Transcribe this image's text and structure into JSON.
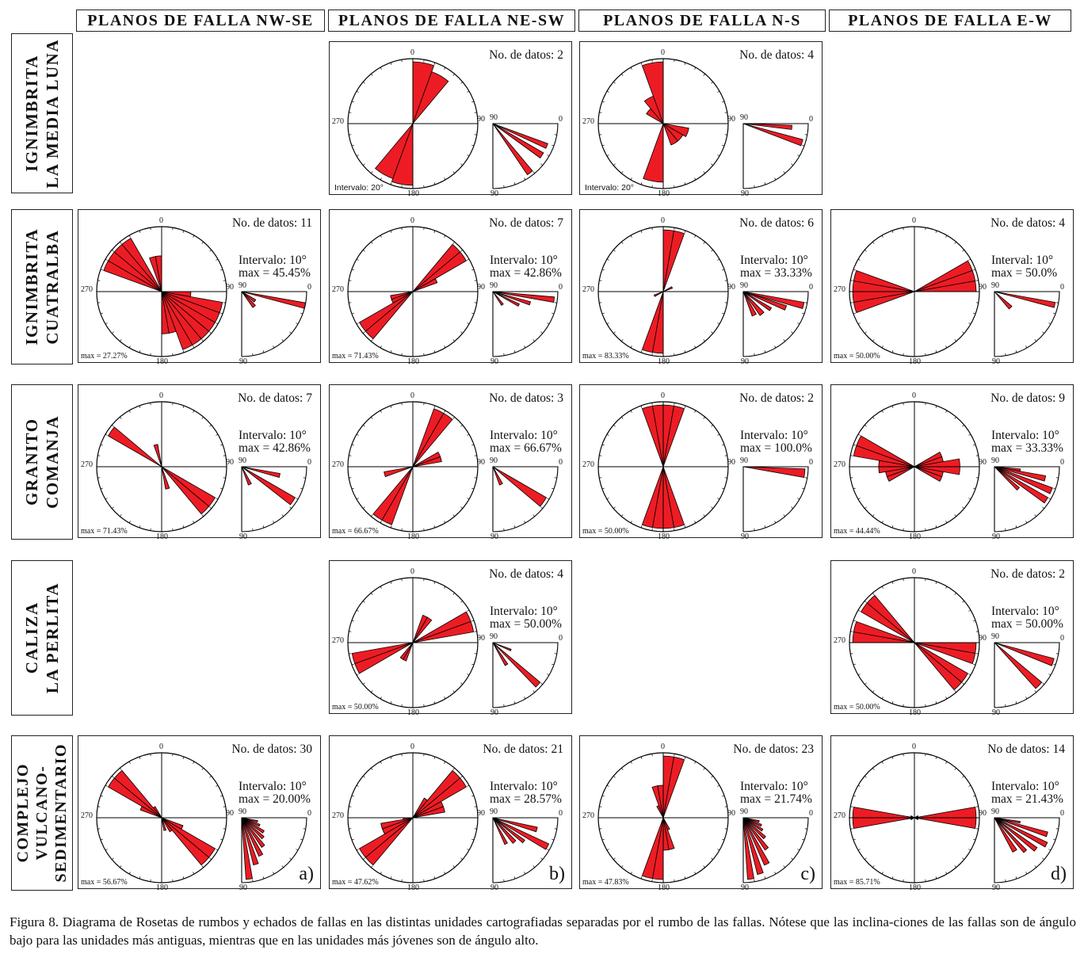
{
  "columns": [
    "PLANOS DE FALLA NW-SE",
    "PLANOS DE FALLA NE-SW",
    "PLANOS DE FALLA N-S",
    "PLANOS DE FALLA E-W"
  ],
  "rows": [
    "IGNIMBRITA\nLA MEDIA LUNA",
    "IGNIMBRITA\nCUATRALBA",
    "GRANITO\nCOMANJA",
    "CALIZA\nLA PERLITA",
    "COMPLEJO\nVULCANO-\nSEDIMENTARIO"
  ],
  "axis_labels": {
    "n": "0",
    "e": "90",
    "s": "180",
    "w": "270",
    "q_top": "0",
    "q_left": "90",
    "q_bottom": "90"
  },
  "panels": [
    {
      "row": 0,
      "col": 1,
      "ndatos": "No. de datos: 2",
      "intervalo": "",
      "max": "",
      "max_left": "",
      "intervalo_left": "Intervalo: 20°",
      "tag": "",
      "petals": [
        [
          0,
          20,
          0.95
        ],
        [
          20,
          40,
          0.85
        ],
        [
          180,
          200,
          0.95
        ],
        [
          200,
          220,
          0.9
        ]
      ],
      "dips": [
        [
          20,
          25,
          0.9
        ],
        [
          30,
          36,
          0.9
        ],
        [
          50,
          56,
          0.95
        ]
      ]
    },
    {
      "row": 0,
      "col": 2,
      "ndatos": "No. de datos: 4",
      "intervalo": "",
      "max": "",
      "max_left": "",
      "intervalo_left": "Intervalo: 20°",
      "tag": "",
      "petals": [
        [
          340,
          360,
          0.95
        ],
        [
          300,
          320,
          0.3
        ],
        [
          320,
          340,
          0.45
        ],
        [
          180,
          200,
          0.9
        ],
        [
          100,
          120,
          0.4
        ],
        [
          120,
          140,
          0.35
        ],
        [
          140,
          160,
          0.35
        ]
      ],
      "dips": [
        [
          2,
          7,
          0.75
        ],
        [
          15,
          21,
          0.95
        ]
      ]
    },
    {
      "row": 1,
      "col": 0,
      "ndatos": "No. de datos: 11",
      "intervalo": "Intervalo: 10°",
      "max": "max = 45.45%",
      "max_left": "max = 27.27%",
      "intervalo_left": "",
      "tag": "",
      "petals": [
        [
          290,
          300,
          0.95
        ],
        [
          300,
          310,
          0.95
        ],
        [
          310,
          320,
          0.95
        ],
        [
          320,
          330,
          0.95
        ],
        [
          340,
          350,
          0.55
        ],
        [
          350,
          360,
          0.55
        ],
        [
          160,
          170,
          0.65
        ],
        [
          170,
          180,
          0.65
        ],
        [
          150,
          160,
          0.95
        ],
        [
          140,
          150,
          0.95
        ],
        [
          130,
          140,
          0.95
        ],
        [
          120,
          130,
          0.95
        ],
        [
          110,
          120,
          0.95
        ],
        [
          100,
          110,
          0.95
        ],
        [
          90,
          100,
          0.45
        ]
      ],
      "dips": [
        [
          30,
          40,
          0.25
        ],
        [
          45,
          55,
          0.3
        ],
        [
          10,
          15,
          1.0
        ]
      ]
    },
    {
      "row": 1,
      "col": 1,
      "ndatos": "No. de datos: 7",
      "intervalo": "Intervalo: 10°",
      "max": "max = 42.86%",
      "max_left": "max = 71.43%",
      "intervalo_left": "",
      "tag": "",
      "petals": [
        [
          40,
          50,
          0.95
        ],
        [
          50,
          60,
          0.95
        ],
        [
          60,
          70,
          0.4
        ],
        [
          230,
          240,
          0.95
        ],
        [
          220,
          230,
          0.95
        ],
        [
          240,
          250,
          0.35
        ],
        [
          250,
          260,
          0.35
        ]
      ],
      "dips": [
        [
          50,
          58,
          0.25
        ],
        [
          25,
          30,
          0.45
        ],
        [
          5,
          10,
          0.95
        ],
        [
          15,
          20,
          0.6
        ]
      ]
    },
    {
      "row": 1,
      "col": 2,
      "ndatos": "No. de datos: 6",
      "intervalo": "Intervalo: 10°",
      "max": "max = 33.33%",
      "max_left": "max = 83.33%",
      "intervalo_left": "",
      "tag": "",
      "petals": [
        [
          0,
          10,
          0.95
        ],
        [
          10,
          20,
          0.95
        ],
        [
          190,
          200,
          0.95
        ],
        [
          180,
          190,
          0.95
        ],
        [
          60,
          70,
          0.15
        ],
        [
          240,
          250,
          0.15
        ]
      ],
      "dips": [
        [
          60,
          70,
          0.4
        ],
        [
          45,
          55,
          0.45
        ],
        [
          30,
          36,
          0.5
        ],
        [
          18,
          24,
          0.7
        ],
        [
          10,
          16,
          0.95
        ]
      ]
    },
    {
      "row": 1,
      "col": 3,
      "ndatos": "No. de datos: 4",
      "intervalo": "Interval: 10°",
      "max": "max = 50.0%",
      "max_left": "max = 50.00%",
      "intervalo_left": "",
      "tag": "",
      "petals": [
        [
          60,
          70,
          0.95
        ],
        [
          70,
          80,
          0.95
        ],
        [
          80,
          90,
          0.95
        ],
        [
          250,
          260,
          0.95
        ],
        [
          260,
          270,
          0.95
        ],
        [
          270,
          280,
          0.95
        ],
        [
          280,
          290,
          0.95
        ]
      ],
      "dips": [
        [
          40,
          50,
          0.35
        ],
        [
          10,
          15,
          0.95
        ]
      ]
    },
    {
      "row": 2,
      "col": 0,
      "ndatos": "No.  de datos: 7",
      "intervalo": "Intervalo: 10°",
      "max": "max = 42.86%",
      "max_left": "max = 71.43%",
      "intervalo_left": "",
      "tag": "",
      "petals": [
        [
          300,
          310,
          0.95
        ],
        [
          340,
          350,
          0.35
        ],
        [
          130,
          140,
          0.95
        ],
        [
          120,
          130,
          0.95
        ],
        [
          160,
          170,
          0.35
        ]
      ],
      "dips": [
        [
          60,
          70,
          0.3
        ],
        [
          30,
          38,
          0.95
        ],
        [
          10,
          16,
          0.6
        ]
      ]
    },
    {
      "row": 2,
      "col": 1,
      "ndatos": "No. de datos: 3",
      "intervalo": "Intervalo: 10°",
      "max": "max = 66.67%",
      "max_left": "max = 66.67%",
      "intervalo_left": "",
      "tag": "",
      "petals": [
        [
          20,
          30,
          0.95
        ],
        [
          30,
          40,
          0.95
        ],
        [
          60,
          70,
          0.45
        ],
        [
          70,
          80,
          0.45
        ],
        [
          210,
          220,
          0.95
        ],
        [
          200,
          210,
          0.95
        ],
        [
          250,
          260,
          0.45
        ]
      ],
      "dips": [
        [
          30,
          40,
          0.95
        ],
        [
          60,
          70,
          0.3
        ]
      ]
    },
    {
      "row": 2,
      "col": 2,
      "ndatos": "No. de datos: 2",
      "intervalo": "Intervalo: 10°",
      "max": "max = 100.0%",
      "max_left": "max = 50.00%",
      "intervalo_left": "",
      "tag": "",
      "petals": [
        [
          340,
          350,
          0.95
        ],
        [
          350,
          360,
          0.95
        ],
        [
          0,
          10,
          0.95
        ],
        [
          10,
          20,
          0.95
        ],
        [
          160,
          170,
          0.95
        ],
        [
          170,
          180,
          0.95
        ],
        [
          180,
          190,
          0.95
        ],
        [
          190,
          200,
          0.95
        ]
      ],
      "dips": [
        [
          2,
          10,
          0.95
        ]
      ]
    },
    {
      "row": 2,
      "col": 3,
      "ndatos": "No. de datos: 9",
      "intervalo": "Intervalo: 10°",
      "max": "max = 33.33%",
      "max_left": "max = 44.44%",
      "intervalo_left": "",
      "tag": "",
      "petals": [
        [
          290,
          300,
          0.95
        ],
        [
          280,
          290,
          0.95
        ],
        [
          270,
          280,
          0.55
        ],
        [
          260,
          270,
          0.55
        ],
        [
          250,
          260,
          0.45
        ],
        [
          240,
          250,
          0.45
        ],
        [
          60,
          70,
          0.45
        ],
        [
          70,
          80,
          0.45
        ],
        [
          80,
          90,
          0.7
        ],
        [
          90,
          100,
          0.7
        ],
        [
          100,
          110,
          0.45
        ],
        [
          110,
          120,
          0.45
        ]
      ],
      "dips": [
        [
          40,
          46,
          0.5
        ],
        [
          30,
          36,
          0.95
        ],
        [
          20,
          26,
          0.95
        ],
        [
          10,
          16,
          0.8
        ],
        [
          5,
          10,
          0.4
        ]
      ]
    },
    {
      "row": 3,
      "col": 1,
      "ndatos": "No. de datos: 4",
      "intervalo": "Intervalo: 10°",
      "max": "max = 50.00%",
      "max_left": "max = 50.00%",
      "intervalo_left": "",
      "tag": "",
      "petals": [
        [
          60,
          70,
          0.95
        ],
        [
          70,
          80,
          0.95
        ],
        [
          20,
          30,
          0.45
        ],
        [
          30,
          40,
          0.45
        ],
        [
          250,
          260,
          0.95
        ],
        [
          240,
          250,
          0.95
        ],
        [
          200,
          210,
          0.3
        ],
        [
          210,
          220,
          0.3
        ]
      ],
      "dips": [
        [
          40,
          46,
          0.95
        ],
        [
          55,
          62,
          0.4
        ],
        [
          20,
          25,
          0.3
        ]
      ]
    },
    {
      "row": 3,
      "col": 3,
      "ndatos": "No. de datos: 2",
      "intervalo": "Intervalo: 10°",
      "max": "max = 50.00%",
      "max_left": "max = 50.00%",
      "intervalo_left": "",
      "tag": "",
      "petals": [
        [
          300,
          310,
          0.95
        ],
        [
          310,
          320,
          0.95
        ],
        [
          270,
          280,
          0.95
        ],
        [
          280,
          290,
          0.95
        ],
        [
          120,
          130,
          0.95
        ],
        [
          130,
          140,
          0.95
        ],
        [
          90,
          100,
          0.95
        ],
        [
          100,
          110,
          0.95
        ]
      ],
      "dips": [
        [
          40,
          48,
          0.95
        ],
        [
          15,
          22,
          0.95
        ]
      ]
    },
    {
      "row": 4,
      "col": 0,
      "ndatos": "No. de datos: 30",
      "intervalo": "Intervalo: 10°",
      "max": "max = 20.00%",
      "max_left": "max = 56.67%",
      "intervalo_left": "",
      "tag": "a)",
      "petals": [
        [
          300,
          310,
          0.95
        ],
        [
          310,
          320,
          0.95
        ],
        [
          290,
          300,
          0.35
        ],
        [
          320,
          330,
          0.2
        ],
        [
          120,
          130,
          0.95
        ],
        [
          130,
          140,
          0.95
        ],
        [
          110,
          120,
          0.35
        ],
        [
          140,
          150,
          0.25
        ],
        [
          160,
          170,
          0.2
        ]
      ],
      "dips": [
        [
          80,
          86,
          0.95
        ],
        [
          70,
          76,
          0.75
        ],
        [
          60,
          66,
          0.65
        ],
        [
          50,
          56,
          0.55
        ],
        [
          40,
          46,
          0.45
        ],
        [
          30,
          36,
          0.4
        ],
        [
          20,
          26,
          0.3
        ],
        [
          10,
          16,
          0.25
        ]
      ]
    },
    {
      "row": 4,
      "col": 1,
      "ndatos": "No. de datos: 21",
      "intervalo": "Intervalo: 10°",
      "max": "max = 28.57%",
      "max_left": "max = 47.62%",
      "intervalo_left": "",
      "tag": "b)",
      "petals": [
        [
          40,
          50,
          0.95
        ],
        [
          50,
          60,
          0.95
        ],
        [
          60,
          70,
          0.5
        ],
        [
          70,
          80,
          0.5
        ],
        [
          220,
          230,
          0.95
        ],
        [
          230,
          240,
          0.95
        ],
        [
          240,
          250,
          0.5
        ],
        [
          250,
          260,
          0.5
        ],
        [
          30,
          40,
          0.35
        ],
        [
          260,
          270,
          0.15
        ]
      ],
      "dips": [
        [
          60,
          66,
          0.45
        ],
        [
          45,
          52,
          0.5
        ],
        [
          35,
          40,
          0.6
        ],
        [
          25,
          31,
          0.95
        ],
        [
          12,
          18,
          0.7
        ]
      ]
    },
    {
      "row": 4,
      "col": 2,
      "ndatos": "No. de datos: 23",
      "intervalo": "Intervalo: 10°",
      "max": "max = 21.74%",
      "max_left": "max = 47.83%",
      "intervalo_left": "",
      "tag": "c)",
      "petals": [
        [
          0,
          10,
          0.95
        ],
        [
          10,
          20,
          0.95
        ],
        [
          340,
          350,
          0.5
        ],
        [
          350,
          360,
          0.5
        ],
        [
          180,
          190,
          0.95
        ],
        [
          190,
          200,
          0.95
        ],
        [
          160,
          170,
          0.5
        ],
        [
          170,
          180,
          0.5
        ],
        [
          330,
          340,
          0.2
        ],
        [
          150,
          160,
          0.2
        ]
      ],
      "dips": [
        [
          80,
          86,
          0.95
        ],
        [
          70,
          76,
          0.9
        ],
        [
          60,
          66,
          0.8
        ],
        [
          50,
          56,
          0.6
        ],
        [
          40,
          46,
          0.45
        ],
        [
          30,
          36,
          0.35
        ],
        [
          20,
          26,
          0.3
        ],
        [
          10,
          16,
          0.25
        ]
      ]
    },
    {
      "row": 4,
      "col": 3,
      "ndatos": "No de datos: 14",
      "intervalo": "Intervalo: 10°",
      "max": "max = 21.43%",
      "max_left": "max = 85.71%",
      "intervalo_left": "",
      "tag": "d)",
      "petals": [
        [
          80,
          90,
          0.95
        ],
        [
          90,
          100,
          0.95
        ],
        [
          260,
          270,
          0.95
        ],
        [
          270,
          280,
          0.95
        ],
        [
          60,
          70,
          0.06
        ],
        [
          110,
          120,
          0.06
        ],
        [
          240,
          250,
          0.06
        ],
        [
          290,
          300,
          0.06
        ]
      ],
      "dips": [
        [
          55,
          62,
          0.6
        ],
        [
          45,
          50,
          0.7
        ],
        [
          35,
          40,
          0.8
        ],
        [
          25,
          30,
          0.9
        ],
        [
          15,
          20,
          0.85
        ],
        [
          8,
          12,
          0.4
        ]
      ]
    }
  ],
  "caption": "Figura 8. Diagrama de Rosetas de rumbos y echados de fallas en las distintas unidades cartografiadas separadas por el rumbo de las fallas. Nótese que las inclina-ciones de las fallas son de ángulo bajo para las unidades más antiguas, mientras que en las unidades más jóvenes son de ángulo alto.",
  "colors": {
    "petal": "#ed1c24",
    "stroke": "#000000"
  }
}
